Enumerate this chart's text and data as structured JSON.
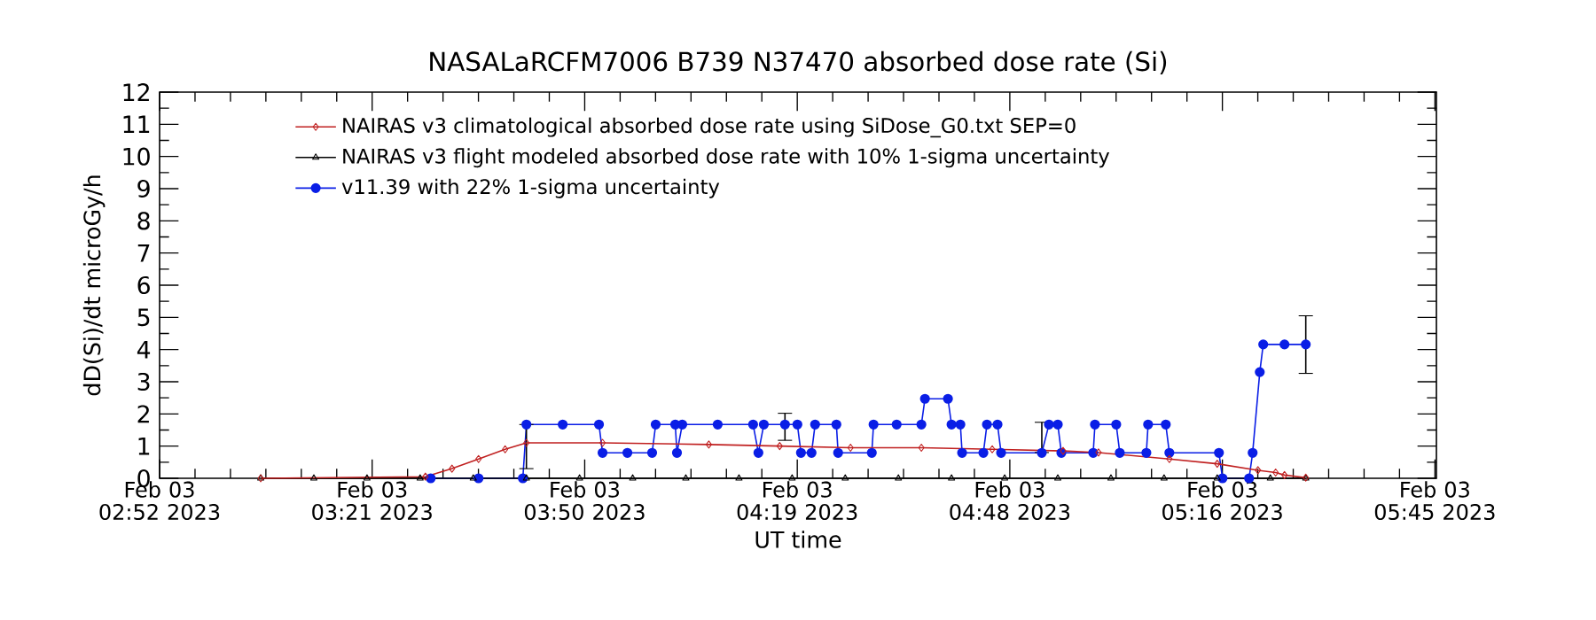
{
  "chart_data": {
    "type": "line",
    "title": "NASALaRCFM7006  B739 N37470 absorbed dose rate (Si)",
    "xlabel": "UT time",
    "ylabel": "dD(Si)/dt microGy/h",
    "xlim": [
      "2023-02-03T02:52:00",
      "2023-02-03T05:45:00"
    ],
    "xticks": [
      {
        "value": "2023-02-03T02:52:00",
        "label": "Feb 03 02:52 2023"
      },
      {
        "value": "2023-02-03T03:20:48",
        "label": "Feb 03 03:21 2023"
      },
      {
        "value": "2023-02-03T03:49:36",
        "label": "Feb 03 03:50 2023"
      },
      {
        "value": "2023-02-03T04:18:24",
        "label": "Feb 03 04:19 2023"
      },
      {
        "value": "2023-02-03T04:47:12",
        "label": "Feb 03 04:48 2023"
      },
      {
        "value": "2023-02-03T05:16:00",
        "label": "Feb 03 05:16 2023"
      },
      {
        "value": "2023-02-03T05:44:48",
        "label": "Feb 03 05:45 2023"
      }
    ],
    "ylim": [
      0,
      12
    ],
    "yticks": [
      0,
      1,
      2,
      3,
      4,
      5,
      6,
      7,
      8,
      9,
      10,
      11,
      12
    ],
    "grid": false,
    "legend": "top left",
    "series": [
      {
        "name": "NAIRAS v3 climatological absorbed dose rate using SiDose_G0.txt SEP=0",
        "color": "#c02020",
        "marker": "diamond",
        "x": [
          "2023-02-03T03:05:42",
          "2023-02-03T03:28:01",
          "2023-02-03T03:31:37",
          "2023-02-03T03:35:13",
          "2023-02-03T03:38:49",
          "2023-02-03T03:41:42",
          "2023-02-03T03:52:01",
          "2023-02-03T04:06:25",
          "2023-02-03T04:16:01",
          "2023-02-03T04:25:37",
          "2023-02-03T04:35:13",
          "2023-02-03T04:44:49",
          "2023-02-03T04:54:25",
          "2023-02-03T04:59:13",
          "2023-02-03T05:08:49",
          "2023-02-03T05:15:18",
          "2023-02-03T05:20:49",
          "2023-02-03T05:23:13",
          "2023-02-03T05:24:25",
          "2023-02-03T05:27:18"
        ],
        "values": [
          0,
          0.05,
          0.3,
          0.6,
          0.9,
          1.1,
          1.1,
          1.05,
          1.0,
          0.95,
          0.95,
          0.9,
          0.85,
          0.8,
          0.6,
          0.45,
          0.25,
          0.18,
          0.1,
          0.02
        ]
      },
      {
        "name": "NAIRAS v3 flight modeled absorbed dose rate with 10% 1-sigma uncertainty",
        "color": "#000000",
        "marker": "triangle",
        "x": [
          "2023-02-03T03:05:42",
          "2023-02-03T03:12:54",
          "2023-02-03T03:20:06",
          "2023-02-03T03:27:18",
          "2023-02-03T03:34:30",
          "2023-02-03T03:41:42",
          "2023-02-03T03:48:54",
          "2023-02-03T03:56:06",
          "2023-02-03T04:03:18",
          "2023-02-03T04:10:30",
          "2023-02-03T04:17:42",
          "2023-02-03T04:24:54",
          "2023-02-03T04:32:06",
          "2023-02-03T04:39:18",
          "2023-02-03T04:46:30",
          "2023-02-03T04:53:42",
          "2023-02-03T05:00:54",
          "2023-02-03T05:08:06",
          "2023-02-03T05:15:18",
          "2023-02-03T05:22:30",
          "2023-02-03T05:27:18"
        ],
        "values": [
          0,
          0,
          0,
          0,
          0,
          0,
          0,
          0,
          0,
          0,
          0,
          0,
          0,
          0,
          0,
          0,
          0,
          0,
          0,
          0,
          0
        ]
      },
      {
        "name": "v11.39 with 22% 1-sigma uncertainty",
        "color": "#0a1ee6",
        "marker": "circle",
        "x": [
          "2023-02-03T03:28:44",
          "2023-02-03T03:35:13",
          "2023-02-03T03:41:13",
          "2023-02-03T03:41:42",
          "2023-02-03T03:46:37",
          "2023-02-03T03:51:32",
          "2023-02-03T03:52:01",
          "2023-02-03T03:55:23",
          "2023-02-03T03:58:44",
          "2023-02-03T03:59:13",
          "2023-02-03T04:01:52",
          "2023-02-03T04:02:06",
          "2023-02-03T04:02:49",
          "2023-02-03T04:07:37",
          "2023-02-03T04:12:25",
          "2023-02-03T04:13:08",
          "2023-02-03T04:13:52",
          "2023-02-03T04:16:44",
          "2023-02-03T04:18:25",
          "2023-02-03T04:18:54",
          "2023-02-03T04:20:20",
          "2023-02-03T04:20:49",
          "2023-02-03T04:23:42",
          "2023-02-03T04:23:56",
          "2023-02-03T04:28:30",
          "2023-02-03T04:28:44",
          "2023-02-03T04:31:52",
          "2023-02-03T04:35:13",
          "2023-02-03T04:35:42",
          "2023-02-03T04:38:49",
          "2023-02-03T04:39:18",
          "2023-02-03T04:40:30",
          "2023-02-03T04:40:44",
          "2023-02-03T04:43:37",
          "2023-02-03T04:44:06",
          "2023-02-03T04:45:32",
          "2023-02-03T04:46:01",
          "2023-02-03T04:51:32",
          "2023-02-03T04:52:30",
          "2023-02-03T04:53:42",
          "2023-02-03T04:54:11",
          "2023-02-03T04:58:30",
          "2023-02-03T04:58:44",
          "2023-02-03T05:01:37",
          "2023-02-03T05:02:06",
          "2023-02-03T05:05:42",
          "2023-02-03T05:05:56",
          "2023-02-03T05:08:20",
          "2023-02-03T05:08:49",
          "2023-02-03T05:15:32",
          "2023-02-03T05:16:01",
          "2023-02-03T05:19:37",
          "2023-02-03T05:20:06",
          "2023-02-03T05:21:04",
          "2023-02-03T05:21:32",
          "2023-02-03T05:24:25",
          "2023-02-03T05:27:18"
        ],
        "errors": [
          null,
          null,
          null,
          [
            0.3,
            1.67
          ],
          null,
          null,
          null,
          null,
          null,
          null,
          null,
          null,
          null,
          null,
          null,
          null,
          null,
          [
            1.18,
            2.02
          ],
          null,
          null,
          null,
          null,
          null,
          null,
          null,
          null,
          null,
          null,
          null,
          null,
          null,
          null,
          null,
          null,
          null,
          null,
          null,
          [
            0.8,
            1.74
          ],
          null,
          null,
          null,
          null,
          null,
          null,
          null,
          null,
          null,
          null,
          null,
          null,
          null,
          null,
          null,
          null,
          null,
          null,
          [
            3.26,
            5.05
          ]
        ],
        "values": [
          0,
          0,
          0,
          1.67,
          1.67,
          1.67,
          0.79,
          0.79,
          0.79,
          1.67,
          1.67,
          0.79,
          1.67,
          1.67,
          1.67,
          0.79,
          1.67,
          1.67,
          1.67,
          0.79,
          0.79,
          1.67,
          1.67,
          0.79,
          0.79,
          1.67,
          1.67,
          1.67,
          2.47,
          2.47,
          1.67,
          1.67,
          0.79,
          0.79,
          1.67,
          1.67,
          0.79,
          0.79,
          1.67,
          1.67,
          0.79,
          0.79,
          1.67,
          1.67,
          0.79,
          0.79,
          1.67,
          1.67,
          0.79,
          0.79,
          0,
          0,
          0.79,
          3.3,
          4.16,
          4.16,
          4.16
        ]
      }
    ]
  }
}
